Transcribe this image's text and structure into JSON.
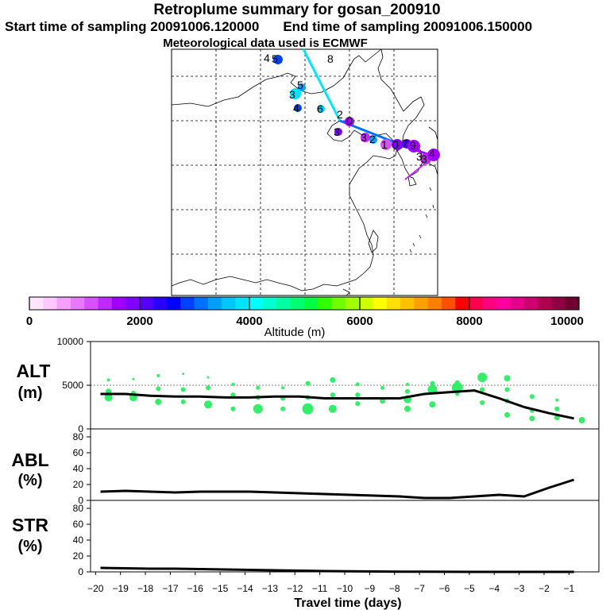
{
  "header": {
    "title": "Retroplume summary for gosan_200910",
    "start_label": "Start time of sampling 20091006.120000",
    "end_label": "End time of sampling 20091006.150000",
    "meteo_label": "Meteorological data used is ECMWF"
  },
  "colorbar": {
    "label": "Altitude (m)",
    "ticks": [
      "0",
      "2000",
      "4000",
      "6000",
      "8000",
      "10000"
    ],
    "colors": [
      "#ffe4ff",
      "#ffc8ff",
      "#f5a0ff",
      "#ea78ff",
      "#d850ff",
      "#bf28ff",
      "#a000ff",
      "#8000ff",
      "#5500ff",
      "#2a00ff",
      "#0000ff",
      "#0040ff",
      "#0070ff",
      "#00a0ff",
      "#00c8ff",
      "#00e4ff",
      "#00ffff",
      "#00ffd0",
      "#00ffa0",
      "#00ff70",
      "#00ff40",
      "#30ff00",
      "#70ff00",
      "#a0ff00",
      "#d0ff00",
      "#ffff00",
      "#ffe000",
      "#ffc000",
      "#ffa000",
      "#ff8000",
      "#ff5000",
      "#ff0000",
      "#ff0050",
      "#ff0080",
      "#ff00a0",
      "#e8008c",
      "#d00070",
      "#b00050",
      "#900040",
      "#700030"
    ]
  },
  "map_labels": [
    "4",
    "5",
    "5",
    "3",
    "4",
    "6",
    "8",
    "2",
    "0",
    "3",
    "3",
    "2",
    "1",
    "0",
    "7",
    "9",
    "3",
    "4",
    "3"
  ],
  "panels": {
    "alt": {
      "label1": "ALT",
      "label2": "(m)",
      "yticks": [
        "10000",
        "5000",
        "0"
      ]
    },
    "abl": {
      "label1": "ABL",
      "label2": "(%)",
      "yticks": [
        "80",
        "60",
        "40",
        "20",
        "0"
      ]
    },
    "str": {
      "label1": "STR",
      "label2": "(%)",
      "yticks": [
        "80",
        "60",
        "40",
        "20",
        "0"
      ]
    }
  },
  "x_axis": {
    "label": "Travel time (days)",
    "ticks": [
      "−20",
      "−19",
      "−18",
      "−17",
      "−16",
      "−15",
      "−14",
      "−13",
      "−12",
      "−11",
      "−10",
      "−9",
      "−8",
      "−7",
      "−6",
      "−5",
      "−4",
      "−3",
      "−2",
      "−1"
    ]
  },
  "colors": {
    "cluster_marker": "#33ee66",
    "line": "#000000"
  },
  "chart_data": [
    {
      "type": "line",
      "name": "ALT",
      "ylabel": "Altitude (m)",
      "xlabel": "Travel time (days)",
      "xlim": [
        -20.2,
        0.2
      ],
      "ylim": [
        0,
        10000
      ],
      "x": [
        -19.8,
        -18.8,
        -17.8,
        -16.8,
        -15.8,
        -14.8,
        -13.8,
        -12.8,
        -11.8,
        -10.8,
        -9.8,
        -8.8,
        -7.8,
        -6.8,
        -5.8,
        -4.8,
        -3.8,
        -2.8,
        -1.8,
        -0.8
      ],
      "values": [
        4000,
        4000,
        3800,
        3700,
        3700,
        3600,
        3600,
        3700,
        3700,
        3500,
        3500,
        3500,
        3500,
        4000,
        4200,
        4400,
        3500,
        2500,
        1800,
        1200
      ],
      "clusters": [
        {
          "x": -19.8,
          "y": 3600,
          "r": 5
        },
        {
          "x": -19.8,
          "y": 4300,
          "r": 3.5
        },
        {
          "x": -19.8,
          "y": 5600,
          "r": 2
        },
        {
          "x": -18.8,
          "y": 3600,
          "r": 5
        },
        {
          "x": -18.8,
          "y": 4100,
          "r": 3
        },
        {
          "x": -18.8,
          "y": 5700,
          "r": 1.5
        },
        {
          "x": -17.8,
          "y": 3100,
          "r": 4
        },
        {
          "x": -17.8,
          "y": 4600,
          "r": 3
        },
        {
          "x": -17.8,
          "y": 6100,
          "r": 2
        },
        {
          "x": -16.8,
          "y": 3100,
          "r": 3
        },
        {
          "x": -16.8,
          "y": 4500,
          "r": 3
        },
        {
          "x": -16.8,
          "y": 6300,
          "r": 1.5
        },
        {
          "x": -15.8,
          "y": 2800,
          "r": 5
        },
        {
          "x": -15.8,
          "y": 4700,
          "r": 3
        },
        {
          "x": -15.8,
          "y": 5900,
          "r": 1.5
        },
        {
          "x": -14.8,
          "y": 2300,
          "r": 3
        },
        {
          "x": -14.8,
          "y": 3900,
          "r": 3
        },
        {
          "x": -14.8,
          "y": 5100,
          "r": 2
        },
        {
          "x": -13.8,
          "y": 2300,
          "r": 6
        },
        {
          "x": -13.8,
          "y": 3600,
          "r": 3
        },
        {
          "x": -13.8,
          "y": 4700,
          "r": 2.5
        },
        {
          "x": -12.8,
          "y": 2300,
          "r": 3
        },
        {
          "x": -12.8,
          "y": 3500,
          "r": 3
        },
        {
          "x": -12.8,
          "y": 4700,
          "r": 2
        },
        {
          "x": -11.8,
          "y": 2300,
          "r": 7
        },
        {
          "x": -11.8,
          "y": 3600,
          "r": 3
        },
        {
          "x": -11.8,
          "y": 5200,
          "r": 3
        },
        {
          "x": -10.8,
          "y": 2300,
          "r": 5
        },
        {
          "x": -10.8,
          "y": 3900,
          "r": 3
        },
        {
          "x": -10.8,
          "y": 5600,
          "r": 3.5
        },
        {
          "x": -9.8,
          "y": 2900,
          "r": 3
        },
        {
          "x": -9.8,
          "y": 3900,
          "r": 3
        },
        {
          "x": -9.8,
          "y": 5100,
          "r": 2.5
        },
        {
          "x": -8.8,
          "y": 3200,
          "r": 3.5
        },
        {
          "x": -8.8,
          "y": 4700,
          "r": 2.5
        },
        {
          "x": -7.8,
          "y": 2300,
          "r": 4
        },
        {
          "x": -7.8,
          "y": 3400,
          "r": 5
        },
        {
          "x": -7.8,
          "y": 4300,
          "r": 3
        },
        {
          "x": -7.8,
          "y": 5100,
          "r": 2
        },
        {
          "x": -6.8,
          "y": 2800,
          "r": 4
        },
        {
          "x": -6.8,
          "y": 4500,
          "r": 6
        },
        {
          "x": -6.8,
          "y": 5200,
          "r": 3
        },
        {
          "x": -5.8,
          "y": 4000,
          "r": 2.5
        },
        {
          "x": -5.8,
          "y": 4700,
          "r": 7
        },
        {
          "x": -5.8,
          "y": 5300,
          "r": 3
        },
        {
          "x": -4.8,
          "y": 3000,
          "r": 3
        },
        {
          "x": -4.8,
          "y": 4500,
          "r": 3
        },
        {
          "x": -4.8,
          "y": 5900,
          "r": 6
        },
        {
          "x": -3.8,
          "y": 1600,
          "r": 3.5
        },
        {
          "x": -3.8,
          "y": 3200,
          "r": 3
        },
        {
          "x": -3.8,
          "y": 4500,
          "r": 3
        },
        {
          "x": -3.8,
          "y": 5800,
          "r": 4
        },
        {
          "x": -2.8,
          "y": 1200,
          "r": 3.5
        },
        {
          "x": -2.8,
          "y": 2100,
          "r": 3
        },
        {
          "x": -2.8,
          "y": 3700,
          "r": 3
        },
        {
          "x": -1.8,
          "y": 1300,
          "r": 3.5
        },
        {
          "x": -1.8,
          "y": 2300,
          "r": 3
        },
        {
          "x": -1.8,
          "y": 3300,
          "r": 2
        },
        {
          "x": -0.8,
          "y": 1000,
          "r": 4
        }
      ]
    },
    {
      "type": "line",
      "name": "ABL",
      "ylabel": "ABL (%)",
      "xlim": [
        -20.2,
        0.2
      ],
      "ylim": [
        0,
        90
      ],
      "x": [
        -19.8,
        -18.8,
        -17.8,
        -16.8,
        -15.8,
        -14.8,
        -13.8,
        -12.8,
        -11.8,
        -10.8,
        -9.8,
        -8.8,
        -7.8,
        -6.8,
        -5.8,
        -4.8,
        -3.8,
        -2.8,
        -1.8,
        -0.8
      ],
      "values": [
        11,
        12,
        11,
        10,
        11,
        11,
        11,
        10,
        9,
        8,
        7,
        6,
        5,
        3,
        3,
        5,
        7,
        5,
        16,
        26
      ]
    },
    {
      "type": "line",
      "name": "STR",
      "ylabel": "STR (%)",
      "xlim": [
        -20.2,
        0.2
      ],
      "ylim": [
        0,
        90
      ],
      "x": [
        -19.8,
        -18.8,
        -17.8,
        -16.8,
        -15.8,
        -14.8,
        -13.8,
        -12.8,
        -11.8,
        -10.8,
        -9.8,
        -8.8,
        -7.8,
        -6.8,
        -5.8,
        -4.8,
        -3.8,
        -2.8,
        -1.8,
        -0.8
      ],
      "values": [
        5,
        4.5,
        4,
        4,
        3.5,
        3,
        2.5,
        2,
        1.5,
        1,
        0.8,
        0.5,
        0.3,
        0.2,
        0.1,
        0,
        0,
        0,
        0,
        0
      ]
    }
  ]
}
